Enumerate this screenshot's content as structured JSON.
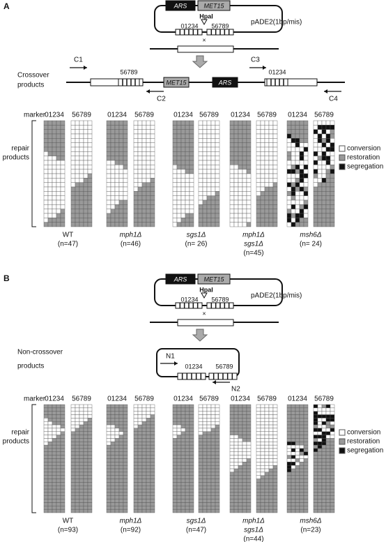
{
  "panels": [
    {
      "label": "A",
      "plasmid": {
        "ars": "ARS",
        "met": "MET15",
        "site": "HpaI",
        "left": "01234",
        "right": "56789",
        "name": "pADE2(1bp/mis)"
      },
      "products_label": [
        "Crossover",
        "products"
      ],
      "primers": [
        "C1",
        "C2",
        "C3",
        "C4"
      ],
      "marker": "marker",
      "repair": [
        "repair",
        "products"
      ],
      "legend": [
        "conversion",
        "restoration",
        "segregation"
      ],
      "strains": [
        {
          "name": [
            "WT"
          ],
          "n": "(n=47)"
        },
        {
          "name": [
            "mph1Δ"
          ],
          "n": "(n=46)"
        },
        {
          "name": [
            "sgs1Δ"
          ],
          "n": "(n= 26)"
        },
        {
          "name": [
            "mph1Δ",
            "sgs1Δ"
          ],
          "n": "(n=45)"
        },
        {
          "name": [
            "msh6Δ"
          ],
          "n": "(n= 24)"
        }
      ]
    },
    {
      "label": "B",
      "plasmid": {
        "ars": "ARS",
        "met": "MET15",
        "site": "HpaI",
        "left": "01234",
        "right": "56789",
        "name": "pADE2(1bp/mis)"
      },
      "products_label": [
        "Non-crossover",
        "products"
      ],
      "primers": [
        "N1",
        "N2"
      ],
      "marker": "marker",
      "repair": [
        "repair",
        "products"
      ],
      "legend": [
        "conversion",
        "restoration",
        "segregation"
      ],
      "strains": [
        {
          "name": [
            "WT"
          ],
          "n": "(n=93)"
        },
        {
          "name": [
            "mph1Δ"
          ],
          "n": "(n=92)"
        },
        {
          "name": [
            "sgs1Δ"
          ],
          "n": "(n=47)"
        },
        {
          "name": [
            "mph1Δ",
            "sgs1Δ"
          ],
          "n": "(n=44)"
        },
        {
          "name": [
            "msh6Δ"
          ],
          "n": "(n=23)"
        }
      ]
    }
  ]
}
